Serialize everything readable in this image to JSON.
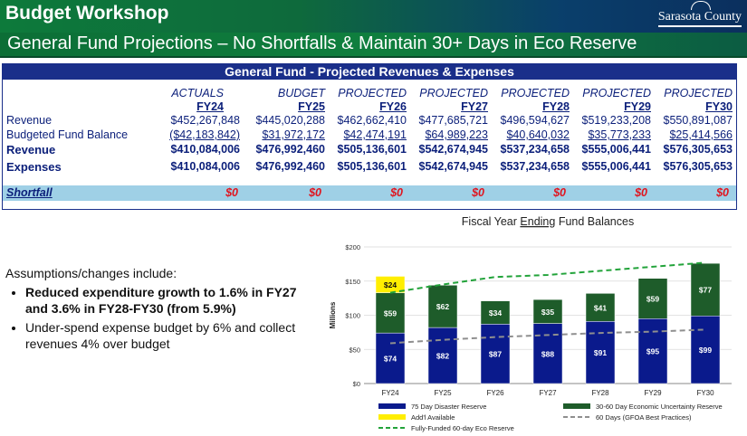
{
  "header": {
    "title": "Budget Workshop",
    "logo_text": "Sarasota County",
    "subtitle": "General Fund Projections – No Shortfalls & Maintain 30+ Days in Eco Reserve"
  },
  "table": {
    "title": "General Fund - Projected Revenues & Expenses",
    "columns": [
      {
        "type": "ACTUALS",
        "fy": "FY24"
      },
      {
        "type": "BUDGET",
        "fy": "FY25"
      },
      {
        "type": "PROJECTED",
        "fy": "FY26"
      },
      {
        "type": "PROJECTED",
        "fy": "FY27"
      },
      {
        "type": "PROJECTED",
        "fy": "FY28"
      },
      {
        "type": "PROJECTED",
        "fy": "FY29"
      },
      {
        "type": "PROJECTED",
        "fy": "FY30"
      }
    ],
    "rows": [
      {
        "label": "Revenue",
        "values": [
          "$452,267,848",
          "$445,020,288",
          "$462,662,410",
          "$477,685,721",
          "$496,594,627",
          "$519,233,208",
          "$550,891,087"
        ]
      },
      {
        "label": "Budgeted Fund Balance",
        "values": [
          "($42,183,842)",
          "$31,972,172",
          "$42,474,191",
          "$64,989,223",
          "$40,640,032",
          "$35,773,233",
          "$25,414,566"
        ]
      },
      {
        "label": "Revenue",
        "values": [
          "$410,084,006",
          "$476,992,460",
          "$505,136,601",
          "$542,674,945",
          "$537,234,658",
          "$555,006,441",
          "$576,305,653"
        ]
      },
      {
        "label": "Expenses",
        "values": [
          "$410,084,006",
          "$476,992,460",
          "$505,136,601",
          "$542,674,945",
          "$537,234,658",
          "$555,006,441",
          "$576,305,653"
        ]
      }
    ],
    "shortfall": {
      "label": "Shortfall",
      "values": [
        "$0",
        "$0",
        "$0",
        "$0",
        "$0",
        "$0",
        "$0"
      ]
    }
  },
  "assumptions": {
    "intro": "Assumptions/changes include:",
    "items": [
      "Reduced expenditure growth to 1.6% in FY27 and 3.6% in FY28-FY30 (from 5.9%)",
      "Under-spend expense budget by 6% and collect revenues 4% over budget"
    ]
  },
  "chart_data": {
    "type": "bar",
    "title_pre": "Fiscal Year ",
    "title_em": "Ending",
    "title_post": " Fund Balances",
    "ylabel": "Millions",
    "ylim": [
      0,
      200
    ],
    "yticks": [
      "$0",
      "$50",
      "$100",
      "$150",
      "$200"
    ],
    "categories": [
      "FY24",
      "FY25",
      "FY26",
      "FY27",
      "FY28",
      "FY29",
      "FY30"
    ],
    "series": [
      {
        "name": "75 Day Disaster Reserve",
        "color": "#0a1a8c",
        "values": [
          74,
          82,
          87,
          88,
          91,
          95,
          99
        ],
        "labels": [
          "$74",
          "$82",
          "$87",
          "$88",
          "$91",
          "$95",
          "$99"
        ]
      },
      {
        "name": "30-60 Day Economic Uncertainty Reserve",
        "color": "#1e5c2a",
        "values": [
          59,
          62,
          34,
          35,
          41,
          59,
          77
        ],
        "labels": [
          "$59",
          "$62",
          "$34",
          "$35",
          "$41",
          "$59",
          "$77"
        ]
      },
      {
        "name": "Add'l Available",
        "color": "#ffee00",
        "values": [
          24,
          0,
          0,
          0,
          0,
          0,
          0
        ],
        "labels": [
          "$24",
          "",
          "",
          "",
          "",
          "",
          ""
        ]
      }
    ],
    "lines": [
      {
        "name": "60 Days (GFOA Best Practices)",
        "color": "#8f8f8f",
        "style": "dashed",
        "values": [
          59,
          64,
          68,
          71,
          74,
          76,
          79
        ]
      },
      {
        "name": "Fully-Funded 60-day Eco Reserve",
        "color": "#22a33a",
        "style": "dashed",
        "values": [
          133,
          145,
          156,
          159,
          165,
          171,
          177
        ]
      }
    ],
    "legend": [
      "75 Day Disaster Reserve",
      "30-60 Day Economic Uncertainty Reserve",
      "Add'l Available",
      "60 Days (GFOA Best Practices)",
      "Fully-Funded 60-day Eco Reserve"
    ]
  }
}
